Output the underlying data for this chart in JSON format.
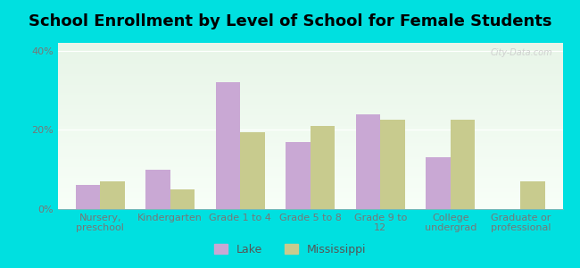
{
  "title": "School Enrollment by Level of School for Female Students",
  "categories": [
    "Nursery,\npreschool",
    "Kindergarten",
    "Grade 1 to 4",
    "Grade 5 to 8",
    "Grade 9 to\n12",
    "College\nundergrad",
    "Graduate or\nprofessional"
  ],
  "lake_values": [
    6,
    10,
    32,
    17,
    24,
    13,
    0
  ],
  "ms_values": [
    7,
    5,
    19.5,
    21,
    22.5,
    22.5,
    7
  ],
  "lake_color": "#c9a8d4",
  "ms_color": "#c8cb8e",
  "background_color": "#00e0e0",
  "plot_bg_top": "#e8f5e8",
  "plot_bg_bottom": "#f8fff8",
  "ylabel_ticks": [
    "0%",
    "20%",
    "40%"
  ],
  "yticks": [
    0,
    20,
    40
  ],
  "ylim": [
    0,
    42
  ],
  "title_fontsize": 13,
  "tick_fontsize": 8,
  "legend_labels": [
    "Lake",
    "Mississippi"
  ],
  "watermark_text": "City-Data.com",
  "bar_width": 0.35
}
